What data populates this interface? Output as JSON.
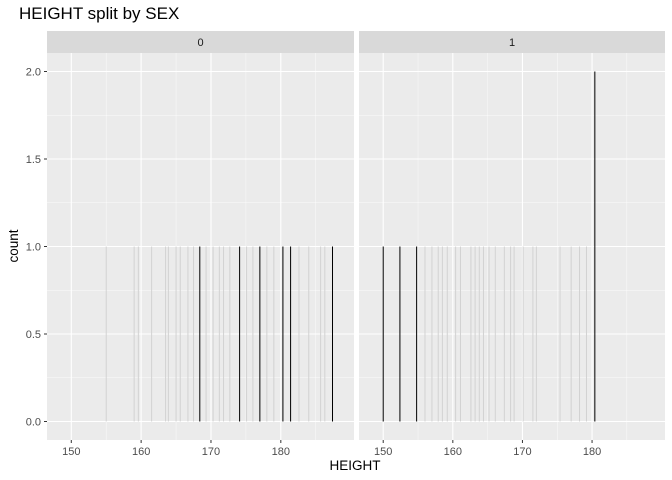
{
  "title": "HEIGHT split by SEX",
  "colors": {
    "panel_bg": "#ebebeb",
    "strip_bg": "#d9d9d9",
    "grid": "#ffffff",
    "bar_dark": "#000000",
    "bar_light": "#d2d2d2"
  },
  "chart_data": {
    "type": "bar",
    "title": "HEIGHT split by SEX",
    "xlabel": "HEIGHT",
    "ylabel": "count",
    "facet_variable": "SEX",
    "xlim": [
      148.5,
      188.5
    ],
    "ylim": [
      0,
      2.0
    ],
    "x_ticks": [
      150,
      160,
      170,
      180
    ],
    "x_tick_labels": [
      "150",
      "160",
      "170",
      "180"
    ],
    "y_ticks": [
      0,
      0.5,
      1.0,
      1.5,
      2.0
    ],
    "y_tick_labels": [
      "0.0",
      "0.5",
      "1.0",
      "1.5",
      "2.0"
    ],
    "grid": true,
    "legend": "none",
    "panels": [
      {
        "strip": "0",
        "bars": [
          {
            "x": 168.4,
            "count": 1
          },
          {
            "x": 174.1,
            "count": 1
          },
          {
            "x": 177.0,
            "count": 1
          },
          {
            "x": 180.3,
            "count": 1
          },
          {
            "x": 181.4,
            "count": 1
          },
          {
            "x": 187.4,
            "count": 1
          }
        ],
        "faint_bars": [
          {
            "x": 155.0,
            "count": 1
          },
          {
            "x": 159.0,
            "count": 1
          },
          {
            "x": 159.6,
            "count": 1
          },
          {
            "x": 161.5,
            "count": 1
          },
          {
            "x": 163.5,
            "count": 1
          },
          {
            "x": 163.9,
            "count": 1
          },
          {
            "x": 165.0,
            "count": 1
          },
          {
            "x": 165.6,
            "count": 1
          },
          {
            "x": 166.7,
            "count": 1
          },
          {
            "x": 167.5,
            "count": 1
          },
          {
            "x": 169.3,
            "count": 1
          },
          {
            "x": 170.3,
            "count": 1
          },
          {
            "x": 171.2,
            "count": 1
          },
          {
            "x": 171.8,
            "count": 1
          },
          {
            "x": 172.7,
            "count": 1
          },
          {
            "x": 175.1,
            "count": 1
          },
          {
            "x": 176.0,
            "count": 1
          },
          {
            "x": 178.0,
            "count": 1
          },
          {
            "x": 179.0,
            "count": 1
          },
          {
            "x": 182.6,
            "count": 1
          },
          {
            "x": 184.0,
            "count": 1
          },
          {
            "x": 185.7,
            "count": 1
          },
          {
            "x": 186.3,
            "count": 1
          }
        ]
      },
      {
        "strip": "1",
        "bars": [
          {
            "x": 150.0,
            "count": 1
          },
          {
            "x": 152.4,
            "count": 1
          },
          {
            "x": 154.8,
            "count": 1
          },
          {
            "x": 180.4,
            "count": 2
          }
        ],
        "faint_bars": [
          {
            "x": 156.0,
            "count": 1
          },
          {
            "x": 157.0,
            "count": 1
          },
          {
            "x": 157.9,
            "count": 1
          },
          {
            "x": 158.5,
            "count": 1
          },
          {
            "x": 159.2,
            "count": 1
          },
          {
            "x": 160.4,
            "count": 1
          },
          {
            "x": 161.1,
            "count": 1
          },
          {
            "x": 162.6,
            "count": 1
          },
          {
            "x": 163.2,
            "count": 1
          },
          {
            "x": 163.8,
            "count": 1
          },
          {
            "x": 164.4,
            "count": 1
          },
          {
            "x": 165.2,
            "count": 1
          },
          {
            "x": 166.1,
            "count": 1
          },
          {
            "x": 167.4,
            "count": 1
          },
          {
            "x": 168.3,
            "count": 1
          },
          {
            "x": 168.8,
            "count": 1
          },
          {
            "x": 170.1,
            "count": 1
          },
          {
            "x": 171.5,
            "count": 1
          },
          {
            "x": 172.0,
            "count": 1
          },
          {
            "x": 175.4,
            "count": 1
          },
          {
            "x": 177.0,
            "count": 1
          },
          {
            "x": 178.2,
            "count": 1
          },
          {
            "x": 179.2,
            "count": 1
          }
        ]
      }
    ]
  }
}
